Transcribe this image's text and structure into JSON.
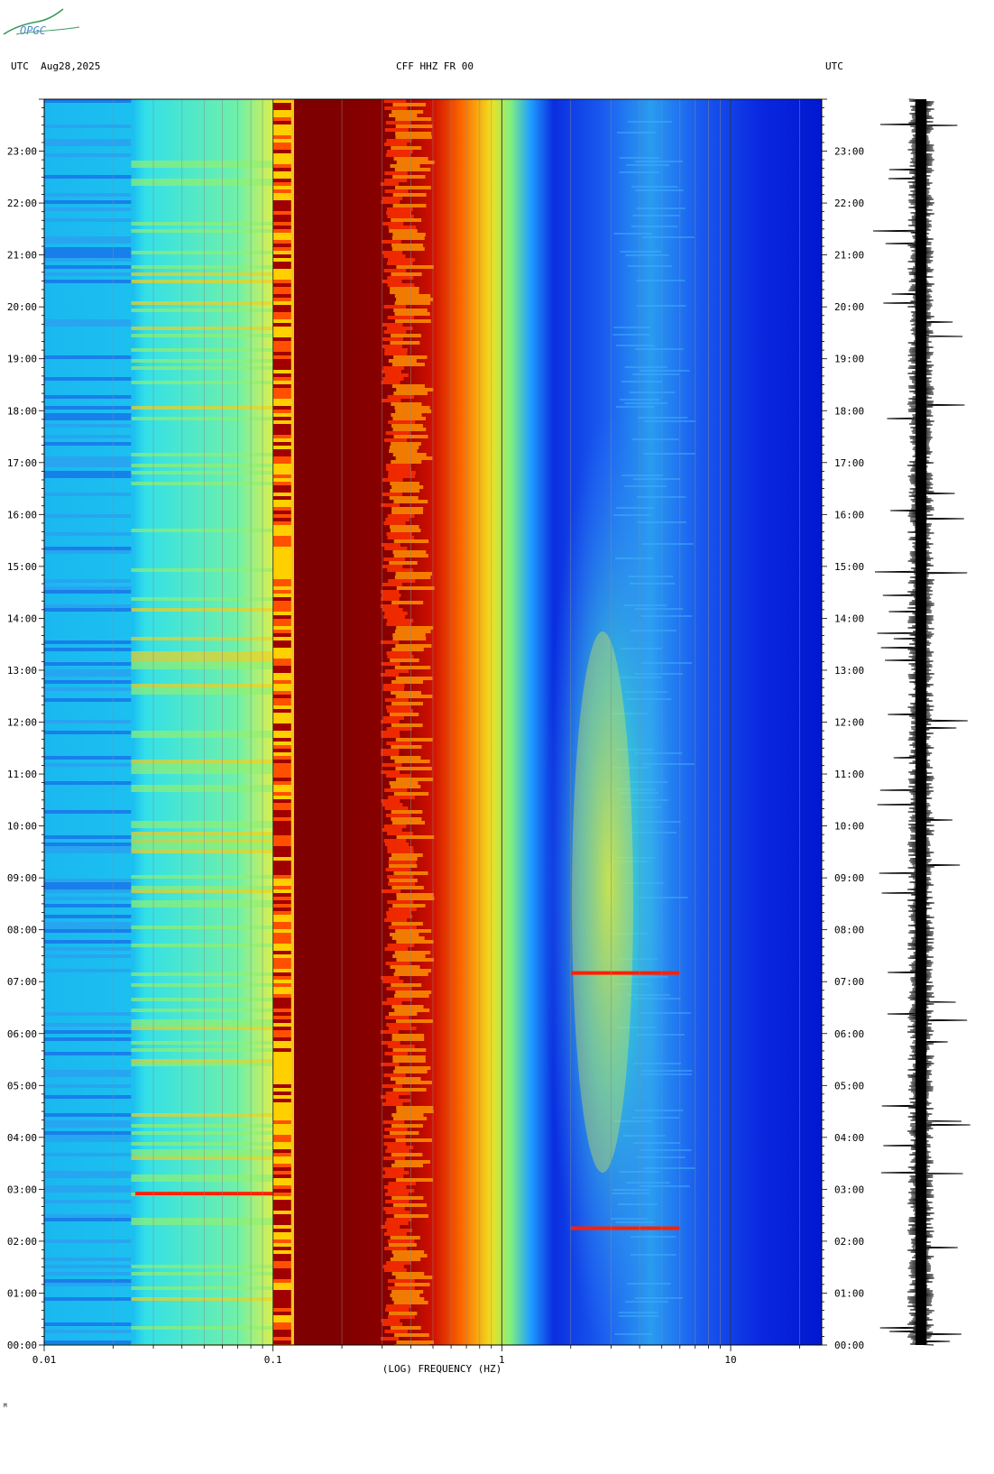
{
  "header": {
    "logo_text": "OPGC",
    "left": "UTC  Aug28,2025",
    "center": "CFF HHZ FR 00",
    "right": "UTC"
  },
  "chart_data": {
    "type": "heatmap",
    "title": "CFF HHZ FR 00",
    "date": "Aug28,2025",
    "time_zone": "UTC",
    "xlabel": "(LOG) FREQUENCY (HZ)",
    "x_scale": "log",
    "xlim": [
      0.01,
      25
    ],
    "x_ticks": [
      "0.01",
      "0.1",
      "1",
      "10"
    ],
    "ylim_hours": [
      0,
      24
    ],
    "y_ticks": [
      "00:00",
      "01:00",
      "02:00",
      "03:00",
      "04:00",
      "05:00",
      "06:00",
      "07:00",
      "08:00",
      "09:00",
      "10:00",
      "11:00",
      "12:00",
      "13:00",
      "14:00",
      "15:00",
      "16:00",
      "17:00",
      "18:00",
      "19:00",
      "20:00",
      "21:00",
      "22:00",
      "23:00"
    ],
    "colormap": [
      "#00007f",
      "#0000ff",
      "#007fff",
      "#00ffff",
      "#7fff7f",
      "#ffff00",
      "#ff7f00",
      "#ff0000",
      "#7f0000"
    ],
    "events_utc": [
      {
        "time": "02:15",
        "freq_hz": [
          2,
          6
        ]
      },
      {
        "time": "02:55",
        "freq_hz": [
          0.025,
          0.1
        ]
      },
      {
        "time": "07:10",
        "freq_hz": [
          2,
          6
        ]
      }
    ]
  },
  "seismogram": {
    "label": "",
    "color": "#000000"
  },
  "footer": {
    "mark": "M"
  }
}
